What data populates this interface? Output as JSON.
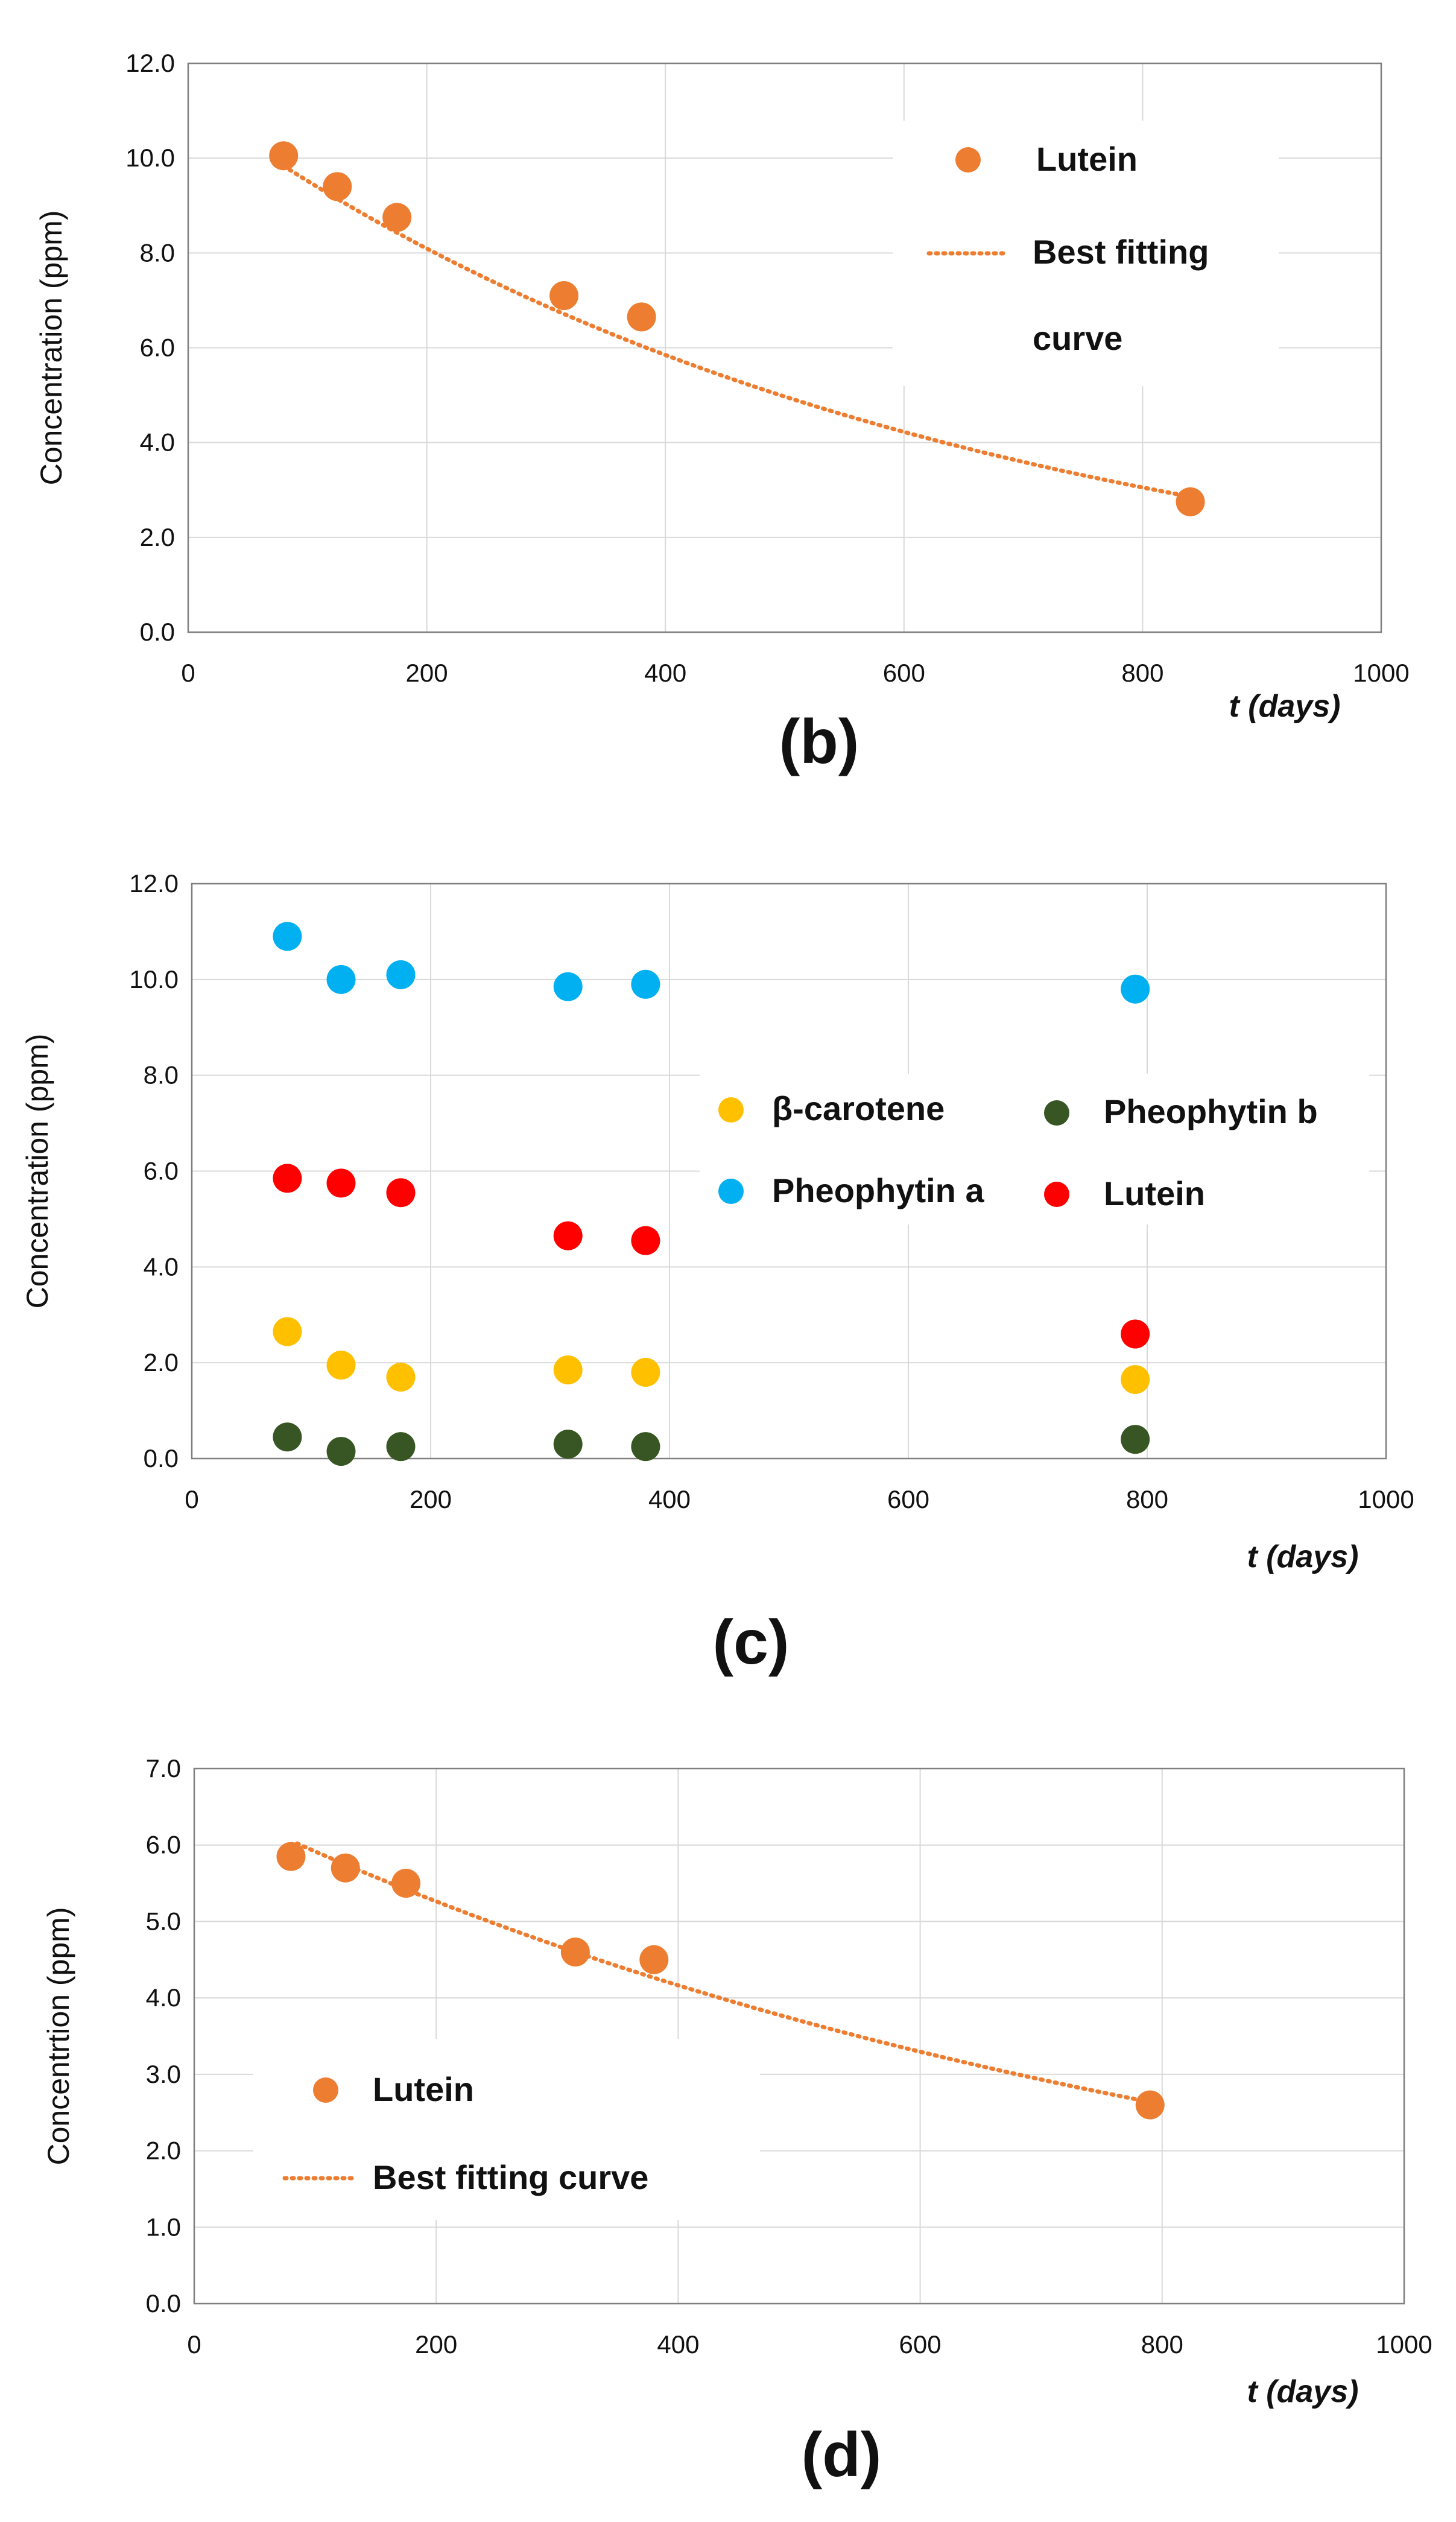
{
  "chart_data": [
    {
      "id": "b",
      "type": "scatter",
      "panel_label": "(b)",
      "xlabel": "t (days)",
      "ylabel": "Concentration (ppm)",
      "xlim": [
        0,
        1000
      ],
      "ylim": [
        0,
        12
      ],
      "xticks": [
        "0",
        "200",
        "400",
        "600",
        "800",
        "1000"
      ],
      "yticks": [
        "0.0",
        "2.0",
        "4.0",
        "6.0",
        "8.0",
        "10.0",
        "12.0"
      ],
      "grid": true,
      "legend": {
        "placement": "top-right",
        "entries": [
          "Lutein",
          "Best fitting",
          "curve"
        ]
      },
      "series": [
        {
          "name": "Lutein",
          "color": "#ED7D31",
          "x": [
            80,
            125,
            175,
            315,
            380,
            840
          ],
          "y": [
            10.05,
            9.4,
            8.75,
            7.1,
            6.65,
            2.75
          ]
        }
      ],
      "fit": {
        "name": "Best fitting curve",
        "color": "#ED7D31",
        "model": "exponential",
        "a": 11.2,
        "k": 0.001625,
        "x_range": [
          85,
          835
        ]
      }
    },
    {
      "id": "c",
      "type": "scatter",
      "panel_label": "(c)",
      "xlabel": "t (days)",
      "ylabel": "Concentration (ppm)",
      "xlim": [
        0,
        1000
      ],
      "ylim": [
        0,
        12
      ],
      "xticks": [
        "0",
        "200",
        "400",
        "600",
        "800",
        "1000"
      ],
      "yticks": [
        "0.0",
        "2.0",
        "4.0",
        "6.0",
        "8.0",
        "10.0",
        "12.0"
      ],
      "grid": true,
      "legend": {
        "placement": "center-right",
        "entries": [
          "β-carotene",
          "Pheophytin b",
          "Pheophytin a",
          "Lutein"
        ]
      },
      "series": [
        {
          "name": "Pheophytin a",
          "color": "#00B0F0",
          "x": [
            80,
            125,
            175,
            315,
            380,
            790
          ],
          "y": [
            10.9,
            10.0,
            10.1,
            9.85,
            9.9,
            9.8
          ]
        },
        {
          "name": "Lutein",
          "color": "#FF0000",
          "x": [
            80,
            125,
            175,
            315,
            380,
            790
          ],
          "y": [
            5.85,
            5.75,
            5.55,
            4.65,
            4.55,
            2.6
          ]
        },
        {
          "name": "β-carotene",
          "color": "#FFC000",
          "x": [
            80,
            125,
            175,
            315,
            380,
            790
          ],
          "y": [
            2.65,
            1.95,
            1.7,
            1.85,
            1.8,
            1.65
          ]
        },
        {
          "name": "Pheophytin b",
          "color": "#375623",
          "x": [
            80,
            125,
            175,
            315,
            380,
            790
          ],
          "y": [
            0.45,
            0.15,
            0.25,
            0.3,
            0.25,
            0.4
          ]
        }
      ]
    },
    {
      "id": "d",
      "type": "scatter",
      "panel_label": "(d)",
      "xlabel": "t (days)",
      "ylabel": "Concentrtion (ppm)",
      "xlim": [
        0,
        1000
      ],
      "ylim": [
        0,
        7
      ],
      "xticks": [
        "0",
        "200",
        "400",
        "600",
        "800",
        "1000"
      ],
      "yticks": [
        "0.0",
        "1.0",
        "2.0",
        "3.0",
        "4.0",
        "5.0",
        "6.0",
        "7.0"
      ],
      "grid": true,
      "legend": {
        "placement": "bottom-left",
        "entries": [
          "Lutein",
          "Best fitting curve"
        ]
      },
      "series": [
        {
          "name": "Lutein",
          "color": "#ED7D31",
          "x": [
            80,
            125,
            175,
            315,
            380,
            790
          ],
          "y": [
            5.85,
            5.7,
            5.5,
            4.6,
            4.5,
            2.6
          ]
        }
      ],
      "fit": {
        "name": "Best fitting curve",
        "color": "#ED7D31",
        "model": "exponential",
        "a": 6.65,
        "k": 0.00117,
        "x_range": [
          85,
          785
        ]
      }
    }
  ]
}
